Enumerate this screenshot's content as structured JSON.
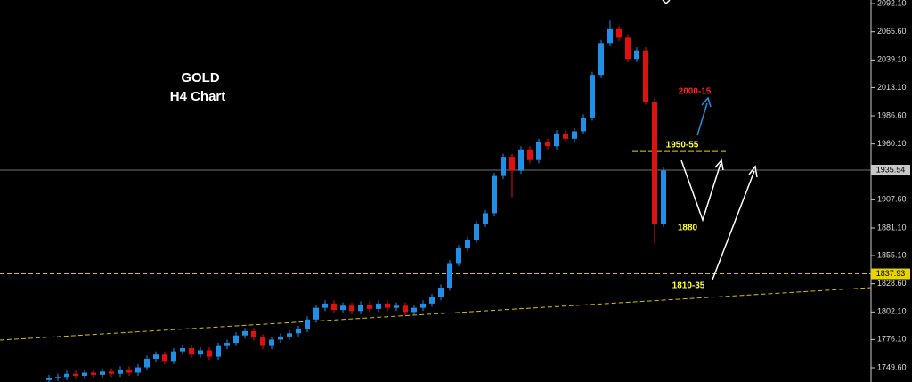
{
  "chart_data": {
    "type": "candlestick",
    "title": "GOLD",
    "subtitle": "H4 Chart",
    "up_color": "#1f8fe8",
    "down_color": "#e01010",
    "ylim": [
      1736.2,
      2095.5
    ],
    "yticks": [
      {
        "value": 1749.6,
        "label": "1749.60"
      },
      {
        "value": 1776.1,
        "label": "1776.10"
      },
      {
        "value": 1802.1,
        "label": "1802.10"
      },
      {
        "value": 1828.6,
        "label": "1828.60"
      },
      {
        "value": 1855.1,
        "label": "1855.10"
      },
      {
        "value": 1881.1,
        "label": "1881.10"
      },
      {
        "value": 1907.6,
        "label": "1907.60"
      },
      {
        "value": 1960.1,
        "label": "1960.10"
      },
      {
        "value": 1986.6,
        "label": "1986.60"
      },
      {
        "value": 2013.1,
        "label": "2013.10"
      },
      {
        "value": 2039.1,
        "label": "2039.10"
      },
      {
        "value": 2065.6,
        "label": "2065.60"
      },
      {
        "value": 2092.1,
        "label": "2092.10"
      }
    ],
    "open": [
      1738,
      1740,
      1741,
      1744,
      1742,
      1745,
      1743,
      1746,
      1744,
      1748,
      1745,
      1750,
      1758,
      1762,
      1756,
      1765,
      1768,
      1762,
      1766,
      1760,
      1770,
      1773,
      1780,
      1784,
      1778,
      1770,
      1776,
      1779,
      1782,
      1786,
      1795,
      1806,
      1810,
      1804,
      1808,
      1803,
      1809,
      1805,
      1810,
      1806,
      1808,
      1802,
      1806,
      1810,
      1816,
      1825,
      1848,
      1862,
      1870,
      1885,
      1895,
      1930,
      1948,
      1935,
      1955,
      1945,
      1962,
      1958,
      1970,
      1965,
      1972,
      1985,
      2025,
      2055,
      2068,
      2060,
      2040,
      2048,
      2000,
      1885
    ],
    "high": [
      1743,
      1744,
      1747,
      1747,
      1748,
      1748,
      1749,
      1749,
      1751,
      1751,
      1753,
      1761,
      1765,
      1765,
      1768,
      1771,
      1771,
      1769,
      1769,
      1773,
      1776,
      1783,
      1787,
      1787,
      1781,
      1779,
      1782,
      1785,
      1789,
      1798,
      1809,
      1813,
      1813,
      1811,
      1811,
      1812,
      1812,
      1813,
      1813,
      1811,
      1811,
      1809,
      1813,
      1819,
      1828,
      1851,
      1865,
      1873,
      1888,
      1898,
      1933,
      1951,
      1951,
      1958,
      1958,
      1965,
      1965,
      1973,
      1973,
      1975,
      1988,
      2028,
      2058,
      2076,
      2071,
      2063,
      2051,
      2051,
      2003,
      1938
    ],
    "low": [
      1735,
      1737,
      1738,
      1739,
      1739,
      1740,
      1740,
      1741,
      1741,
      1742,
      1742,
      1747,
      1755,
      1753,
      1753,
      1762,
      1759,
      1759,
      1757,
      1757,
      1767,
      1770,
      1777,
      1775,
      1767,
      1767,
      1773,
      1776,
      1779,
      1783,
      1792,
      1803,
      1801,
      1801,
      1800,
      1800,
      1802,
      1802,
      1803,
      1803,
      1799,
      1799,
      1803,
      1807,
      1813,
      1822,
      1845,
      1859,
      1867,
      1882,
      1892,
      1927,
      1910,
      1932,
      1942,
      1942,
      1955,
      1955,
      1962,
      1962,
      1969,
      1982,
      2022,
      2052,
      2057,
      2037,
      2037,
      1997,
      1866,
      1882
    ],
    "close": [
      1740,
      1741,
      1744,
      1742,
      1745,
      1743,
      1746,
      1744,
      1748,
      1745,
      1750,
      1758,
      1762,
      1756,
      1765,
      1768,
      1762,
      1766,
      1760,
      1770,
      1773,
      1780,
      1784,
      1778,
      1770,
      1776,
      1779,
      1782,
      1786,
      1795,
      1806,
      1810,
      1804,
      1808,
      1803,
      1809,
      1805,
      1810,
      1806,
      1808,
      1802,
      1806,
      1810,
      1816,
      1825,
      1848,
      1862,
      1870,
      1885,
      1895,
      1930,
      1948,
      1935,
      1955,
      1945,
      1962,
      1958,
      1970,
      1965,
      1972,
      1985,
      2025,
      2055,
      2068,
      2060,
      2040,
      2048,
      2000,
      1885,
      1935
    ],
    "current_price": {
      "value": 1935.54,
      "label": "1935.54"
    },
    "support_level": {
      "value": 1837.93,
      "label": "1837.93"
    },
    "resistance_level": 1953,
    "trendline": [
      1775.6,
      1825.0
    ],
    "annotations": [
      "2000-15",
      "1950-55",
      "1880",
      "1810-35"
    ]
  }
}
